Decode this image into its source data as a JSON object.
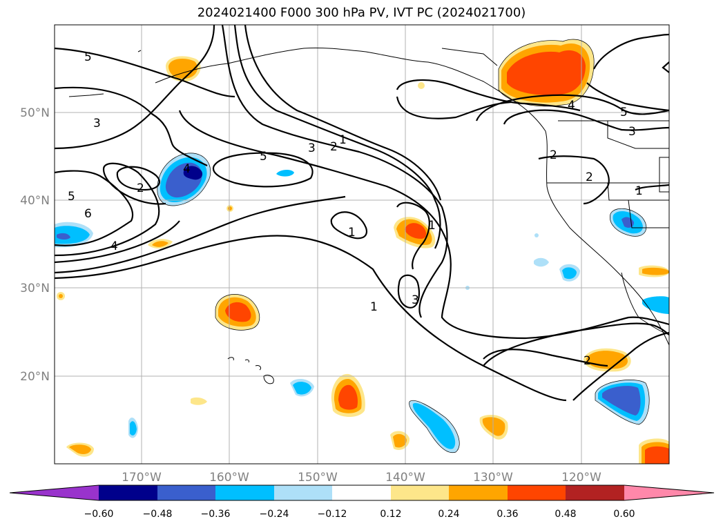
{
  "title": "2024021400 F000 300 hPa PV, IVT PC (2024021700)",
  "latitude_labels": [
    "50°N",
    "40°N",
    "30°N",
    "20°N"
  ],
  "longitude_labels": [
    "170°W",
    "160°W",
    "150°W",
    "140°W",
    "130°W",
    "120°W"
  ],
  "colorbar": {
    "ticks": [
      "−0.60",
      "−0.48",
      "−0.36",
      "−0.24",
      "−0.12",
      "0.12",
      "0.24",
      "0.36",
      "0.48",
      "0.60"
    ],
    "colors": [
      "#9933cc",
      "#00008b",
      "#3a5fcd",
      "#00bfff",
      "#aee0f8",
      "#ffffff",
      "#fde68a",
      "#ffa500",
      "#ff4500",
      "#b22222",
      "#ff88aa"
    ]
  },
  "contour_labels": [
    "5",
    "3",
    "5",
    "6",
    "4",
    "2",
    "4",
    "5",
    "3",
    "2",
    "1",
    "1",
    "3",
    "1",
    "1",
    "4",
    "5",
    "3",
    "2",
    "2",
    "1",
    "2"
  ]
}
